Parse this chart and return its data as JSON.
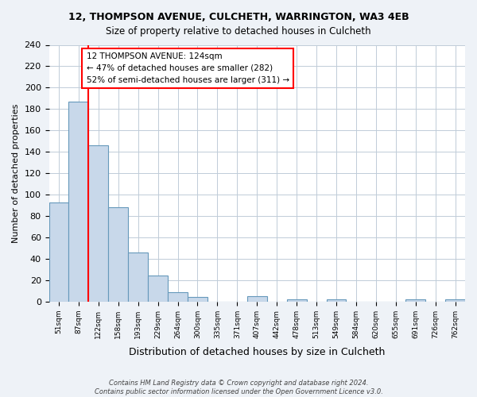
{
  "title": "12, THOMPSON AVENUE, CULCHETH, WARRINGTON, WA3 4EB",
  "subtitle": "Size of property relative to detached houses in Culcheth",
  "xlabel": "Distribution of detached houses by size in Culcheth",
  "ylabel": "Number of detached properties",
  "bin_labels": [
    "51sqm",
    "87sqm",
    "122sqm",
    "158sqm",
    "193sqm",
    "229sqm",
    "264sqm",
    "300sqm",
    "335sqm",
    "371sqm",
    "407sqm",
    "442sqm",
    "478sqm",
    "513sqm",
    "549sqm",
    "584sqm",
    "620sqm",
    "655sqm",
    "691sqm",
    "726sqm",
    "762sqm"
  ],
  "bar_heights": [
    93,
    187,
    146,
    88,
    46,
    24,
    9,
    4,
    0,
    0,
    5,
    0,
    2,
    0,
    2,
    0,
    0,
    0,
    2,
    0,
    2
  ],
  "bar_color": "#c8d8ea",
  "bar_edge_color": "#6699bb",
  "red_line_index": 2,
  "ylim": [
    0,
    240
  ],
  "yticks": [
    0,
    20,
    40,
    60,
    80,
    100,
    120,
    140,
    160,
    180,
    200,
    220,
    240
  ],
  "annotation_title": "12 THOMPSON AVENUE: 124sqm",
  "annotation_line1": "← 47% of detached houses are smaller (282)",
  "annotation_line2": "52% of semi-detached houses are larger (311) →",
  "footer_line1": "Contains HM Land Registry data © Crown copyright and database right 2024.",
  "footer_line2": "Contains public sector information licensed under the Open Government Licence v3.0.",
  "bg_color": "#eef2f7",
  "plot_bg_color": "#ffffff",
  "grid_color": "#c0ccd8"
}
